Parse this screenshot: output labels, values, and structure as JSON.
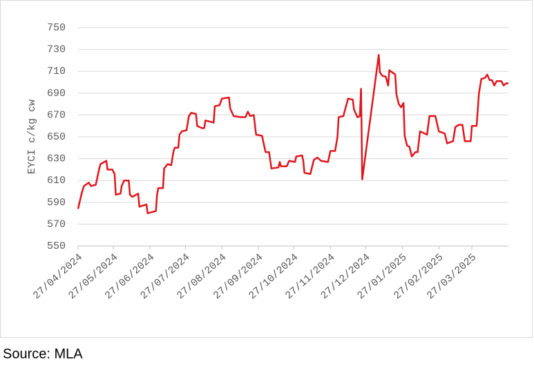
{
  "chart_data": {
    "type": "line",
    "y_label": "EYCI c/kg cw",
    "color": "#e0141b",
    "ylim": [
      550,
      750
    ],
    "yticks": [
      550,
      570,
      590,
      610,
      630,
      650,
      670,
      690,
      710,
      730,
      750
    ],
    "grid": true,
    "xlim": [
      "2024-04-27",
      "2025-04-27"
    ],
    "xticks": [
      {
        "value": "2024-04-27",
        "label": "27/04/2024"
      },
      {
        "value": "2024-05-27",
        "label": "27/05/2024"
      },
      {
        "value": "2024-06-27",
        "label": "27/06/2024"
      },
      {
        "value": "2024-07-27",
        "label": "27/07/2024"
      },
      {
        "value": "2024-08-27",
        "label": "27/08/2024"
      },
      {
        "value": "2024-09-27",
        "label": "27/09/2024"
      },
      {
        "value": "2024-10-27",
        "label": "27/10/2024"
      },
      {
        "value": "2024-11-27",
        "label": "27/11/2024"
      },
      {
        "value": "2024-12-27",
        "label": "27/12/2024"
      },
      {
        "value": "2025-01-27",
        "label": "27/01/2025"
      },
      {
        "value": "2025-02-27",
        "label": "27/02/2025"
      },
      {
        "value": "2025-03-27",
        "label": "27/03/2025"
      }
    ],
    "x": [
      "2024-04-27",
      "2024-04-30",
      "2024-05-02",
      "2024-05-06",
      "2024-05-08",
      "2024-05-12",
      "2024-05-15",
      "2024-05-16",
      "2024-05-21",
      "2024-05-22",
      "2024-05-26",
      "2024-05-28",
      "2024-05-29",
      "2024-06-02",
      "2024-06-03",
      "2024-06-05",
      "2024-06-09",
      "2024-06-10",
      "2024-06-12",
      "2024-06-17",
      "2024-06-18",
      "2024-06-24",
      "2024-06-25",
      "2024-07-02",
      "2024-07-03",
      "2024-07-04",
      "2024-07-08",
      "2024-07-09",
      "2024-07-12",
      "2024-07-15",
      "2024-07-17",
      "2024-07-18",
      "2024-07-21",
      "2024-07-22",
      "2024-07-24",
      "2024-07-28",
      "2024-07-30",
      "2024-08-01",
      "2024-08-05",
      "2024-08-06",
      "2024-08-10",
      "2024-08-12",
      "2024-08-13",
      "2024-08-20",
      "2024-08-21",
      "2024-08-25",
      "2024-08-27",
      "2024-09-02",
      "2024-09-03",
      "2024-09-06",
      "2024-09-12",
      "2024-09-16",
      "2024-09-18",
      "2024-09-20",
      "2024-09-23",
      "2024-09-25",
      "2024-09-30",
      "2024-10-03",
      "2024-10-06",
      "2024-10-08",
      "2024-10-14",
      "2024-10-15",
      "2024-10-16",
      "2024-10-21",
      "2024-10-23",
      "2024-10-28",
      "2024-10-29",
      "2024-11-03",
      "2024-11-04",
      "2024-11-05",
      "2024-11-10",
      "2024-11-13",
      "2024-11-16",
      "2024-11-19",
      "2024-11-25",
      "2024-11-27",
      "2024-12-01",
      "2024-12-03",
      "2024-12-04",
      "2024-12-08",
      "2024-12-12",
      "2024-12-16",
      "2024-12-17",
      "2024-12-20",
      "2024-12-22",
      "2024-12-23",
      "2024-12-24",
      "2025-01-07",
      "2025-01-08",
      "2025-01-10",
      "2025-01-13",
      "2025-01-15",
      "2025-01-16",
      "2025-01-21",
      "2025-01-22",
      "2025-01-24",
      "2025-01-26",
      "2025-01-28",
      "2025-01-29",
      "2025-01-31",
      "2025-02-02",
      "2025-02-04",
      "2025-02-07",
      "2025-02-09",
      "2025-02-11",
      "2025-02-17",
      "2025-02-19",
      "2025-02-24",
      "2025-02-27",
      "2025-03-04",
      "2025-03-06",
      "2025-03-11",
      "2025-03-13",
      "2025-03-16",
      "2025-03-19",
      "2025-03-21",
      "2025-03-26",
      "2025-03-27",
      "2025-03-31",
      "2025-04-02",
      "2025-04-04",
      "2025-04-07",
      "2025-04-09",
      "2025-04-11",
      "2025-04-13",
      "2025-04-15",
      "2025-04-17",
      "2025-04-21",
      "2025-04-23",
      "2025-04-25",
      "2025-04-27"
    ],
    "values": [
      584,
      598,
      605,
      608,
      605,
      606,
      621,
      625,
      628,
      620,
      620,
      616,
      597,
      598,
      605,
      610,
      610,
      597,
      595,
      598,
      586,
      588,
      580,
      582,
      597,
      603,
      603,
      621,
      625,
      624,
      637,
      640,
      640,
      652,
      655,
      656,
      669,
      672,
      671,
      660,
      658,
      658,
      665,
      663,
      678,
      679,
      685,
      686,
      676,
      669,
      668,
      668,
      673,
      669,
      670,
      652,
      651,
      636,
      636,
      621,
      622,
      627,
      623,
      623,
      628,
      627,
      632,
      633,
      628,
      617,
      616,
      629,
      631,
      628,
      627,
      637,
      637,
      650,
      668,
      669,
      685,
      684,
      675,
      668,
      669,
      694,
      611,
      725,
      709,
      706,
      705,
      697,
      711,
      707,
      689,
      680,
      677,
      681,
      651,
      642,
      641,
      632,
      636,
      636,
      655,
      652,
      669,
      669,
      655,
      653,
      644,
      646,
      659,
      661,
      661,
      646,
      646,
      660,
      660,
      690,
      703,
      704,
      707,
      702,
      702,
      697,
      701,
      701,
      697,
      699,
      699
    ]
  },
  "source": "Source: MLA"
}
